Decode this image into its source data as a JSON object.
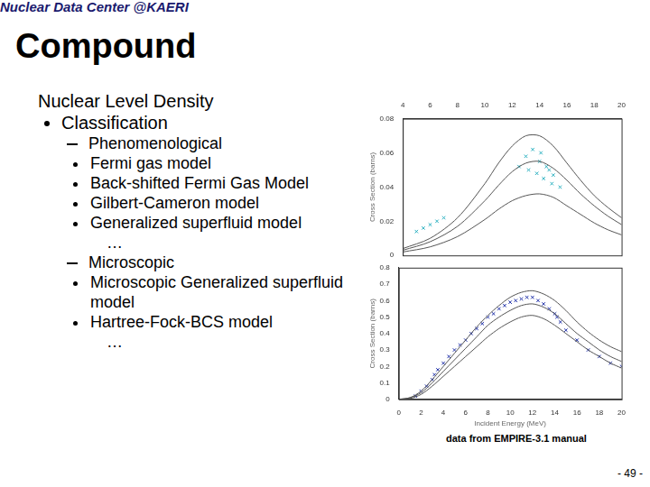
{
  "header": "Nuclear Data Center @KAERI",
  "title": "Compound",
  "body": {
    "heading": "Nuclear Level Density",
    "items": [
      {
        "text": "Classification",
        "groups": [
          {
            "text": "Phenomenological",
            "items": [
              "Fermi gas model",
              "Back-shifted Fermi Gas Model",
              "Gilbert-Cameron model",
              "Generalized superfluid model"
            ],
            "more": "…"
          },
          {
            "text": "Microscopic",
            "items": [
              "Microscopic Generalized superfluid model",
              "Hartree-Fock-BCS model"
            ],
            "more": "…"
          }
        ]
      }
    ]
  },
  "chart_data": [
    {
      "type": "scatter",
      "y_label": "Cross Section (barns)",
      "xlim": [
        4,
        20
      ],
      "xticks": [
        4,
        6,
        8,
        10,
        12,
        14,
        16,
        18,
        20
      ],
      "ylim": [
        0,
        0.08
      ],
      "yticks": [
        0,
        0.02,
        0.04,
        0.06,
        0.08
      ],
      "grid": false,
      "series": [
        {
          "type": "line",
          "color": "#555555",
          "line_style": "solid",
          "x": [
            4,
            6,
            8,
            10,
            11,
            12,
            13,
            14,
            15,
            16,
            17,
            18,
            19,
            20
          ],
          "values": [
            0.004,
            0.01,
            0.022,
            0.042,
            0.054,
            0.064,
            0.07,
            0.07,
            0.064,
            0.054,
            0.044,
            0.035,
            0.028,
            0.022
          ]
        },
        {
          "type": "line",
          "color": "#555555",
          "line_style": "solid",
          "x": [
            4,
            6,
            8,
            10,
            11,
            12,
            13,
            14,
            15,
            16,
            17,
            18,
            19,
            20
          ],
          "values": [
            0.003,
            0.008,
            0.017,
            0.032,
            0.041,
            0.049,
            0.054,
            0.055,
            0.051,
            0.044,
            0.036,
            0.029,
            0.023,
            0.018
          ]
        },
        {
          "type": "line",
          "color": "#555555",
          "line_style": "solid",
          "x": [
            4,
            6,
            8,
            10,
            11,
            12,
            13,
            14,
            15,
            16,
            17,
            18,
            19,
            20
          ],
          "values": [
            0.002,
            0.005,
            0.011,
            0.021,
            0.027,
            0.032,
            0.035,
            0.036,
            0.034,
            0.029,
            0.024,
            0.019,
            0.015,
            0.012
          ]
        },
        {
          "type": "scatter",
          "color": "#2ab0c0",
          "marker": "crossRot",
          "x": [
            5.0,
            5.5,
            6.0,
            6.5,
            7.0,
            12.5,
            13.0,
            13.2,
            13.5,
            13.8,
            14.0,
            14.1,
            14.3,
            14.5,
            14.7,
            14.9,
            15.0,
            15.5
          ],
          "values": [
            0.014,
            0.016,
            0.018,
            0.02,
            0.022,
            0.052,
            0.058,
            0.05,
            0.062,
            0.048,
            0.055,
            0.06,
            0.045,
            0.052,
            0.05,
            0.042,
            0.047,
            0.04
          ]
        }
      ]
    },
    {
      "type": "scatter",
      "x_label": "Incident Energy (MeV)",
      "y_label": "Cross Section (barns)",
      "xlim": [
        0,
        20
      ],
      "xticks": [
        0,
        2,
        4,
        6,
        8,
        10,
        12,
        14,
        16,
        18,
        20
      ],
      "ylim": [
        0,
        0.8
      ],
      "yticks": [
        0,
        0.1,
        0.2,
        0.3,
        0.4,
        0.5,
        0.6,
        0.7,
        0.8
      ],
      "grid": false,
      "series": [
        {
          "type": "line",
          "color": "#555555",
          "line_style": "solid",
          "x": [
            0,
            1,
            2,
            3,
            4,
            5,
            6,
            7,
            8,
            9,
            10,
            11,
            12,
            13,
            14,
            15,
            16,
            17,
            18,
            19,
            20
          ],
          "values": [
            0,
            0.01,
            0.05,
            0.12,
            0.2,
            0.28,
            0.36,
            0.44,
            0.51,
            0.57,
            0.62,
            0.65,
            0.66,
            0.64,
            0.6,
            0.54,
            0.47,
            0.41,
            0.36,
            0.32,
            0.29
          ]
        },
        {
          "type": "line",
          "color": "#555555",
          "line_style": "solid",
          "x": [
            0,
            1,
            2,
            3,
            4,
            5,
            6,
            7,
            8,
            9,
            10,
            11,
            12,
            13,
            14,
            15,
            16,
            17,
            18,
            19,
            20
          ],
          "values": [
            0,
            0.01,
            0.04,
            0.1,
            0.17,
            0.24,
            0.31,
            0.38,
            0.45,
            0.5,
            0.54,
            0.57,
            0.58,
            0.56,
            0.52,
            0.46,
            0.4,
            0.35,
            0.3,
            0.26,
            0.23
          ]
        },
        {
          "type": "line",
          "color": "#555555",
          "line_style": "solid",
          "x": [
            0,
            1,
            2,
            3,
            4,
            5,
            6,
            7,
            8,
            9,
            10,
            11,
            12,
            13,
            14,
            15,
            16,
            17,
            18,
            19,
            20
          ],
          "values": [
            0,
            0.005,
            0.03,
            0.08,
            0.14,
            0.2,
            0.26,
            0.32,
            0.38,
            0.43,
            0.47,
            0.5,
            0.51,
            0.49,
            0.45,
            0.4,
            0.35,
            0.3,
            0.26,
            0.22,
            0.19
          ]
        },
        {
          "type": "scatter",
          "color": "#2233aa",
          "marker": "crossRot",
          "x": [
            1.5,
            2,
            2.5,
            3,
            3.2,
            3.5,
            4,
            4.5,
            5,
            5.5,
            6,
            6.5,
            7,
            7.5,
            8,
            8.5,
            9,
            9.5,
            10,
            10.5,
            11,
            11.5,
            12,
            12.5,
            13,
            13.5,
            14,
            14.2,
            14.5,
            15,
            16,
            17,
            18,
            19,
            20
          ],
          "values": [
            0.02,
            0.05,
            0.08,
            0.12,
            0.15,
            0.18,
            0.22,
            0.26,
            0.3,
            0.33,
            0.36,
            0.4,
            0.43,
            0.46,
            0.5,
            0.52,
            0.55,
            0.57,
            0.59,
            0.6,
            0.61,
            0.62,
            0.62,
            0.6,
            0.58,
            0.55,
            0.52,
            0.5,
            0.47,
            0.42,
            0.36,
            0.3,
            0.26,
            0.22,
            0.2
          ]
        }
      ]
    }
  ],
  "caption": "data from EMPIRE-3.1 manual",
  "page": "- 49 -"
}
